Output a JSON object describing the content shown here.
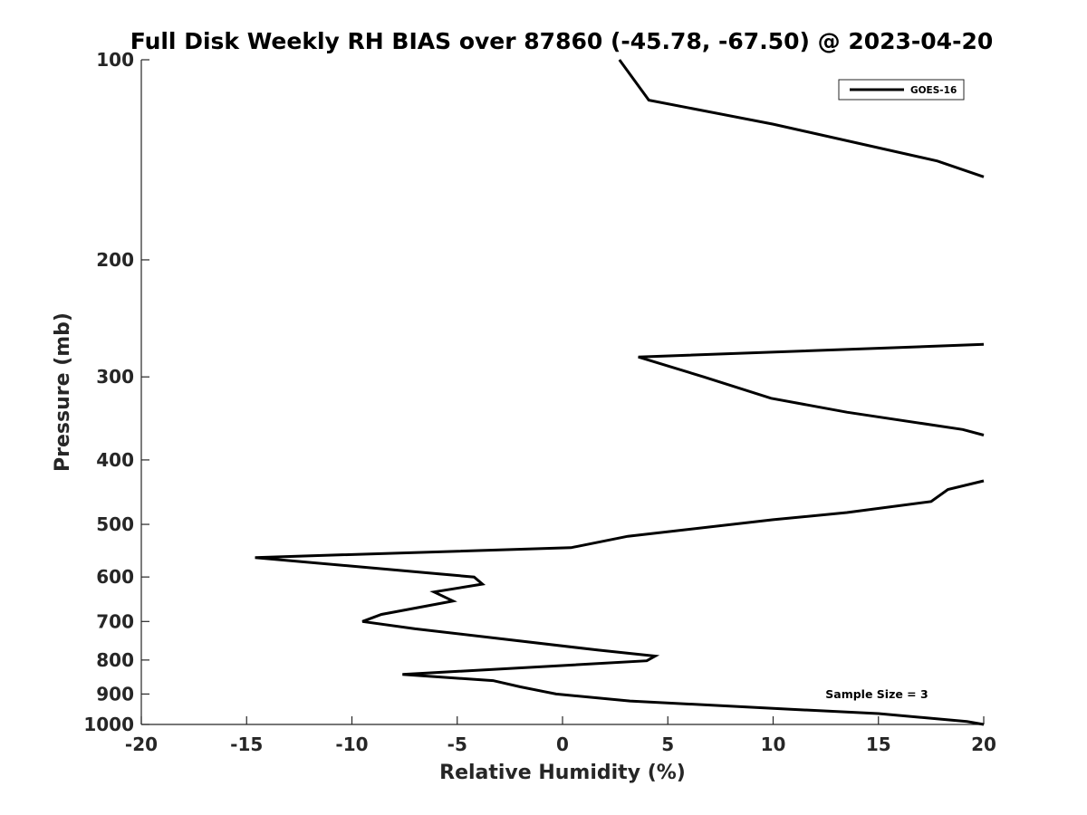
{
  "chart_data": {
    "type": "line",
    "title": "Full Disk Weekly RH BIAS over 87860 (-45.78, -67.50) @ 2023-04-20",
    "xlabel": "Relative Humidity (%)",
    "ylabel": "Pressure (mb)",
    "xlim": [
      -20,
      20
    ],
    "ylim": [
      100,
      1000
    ],
    "y_scale": "log",
    "y_reversed": true,
    "grid": false,
    "legend_position": "top-right",
    "x_ticks": [
      "-20",
      "-15",
      "-10",
      "-5",
      "0",
      "5",
      "10",
      "15",
      "20"
    ],
    "y_ticks": [
      "100",
      "200",
      "300",
      "400",
      "500",
      "600",
      "700",
      "800",
      "900",
      "1000"
    ],
    "annotation": "Sample Size = 3",
    "series": [
      {
        "name": "GOES-16",
        "color": "#000000",
        "segments": [
          [
            [
              2.7,
              100
            ],
            [
              4.1,
              115
            ],
            [
              10.0,
              125
            ],
            [
              17.8,
              142
            ],
            [
              20.0,
              150
            ]
          ],
          [
            [
              20.0,
              268
            ],
            [
              3.6,
              280
            ],
            [
              6.7,
              300
            ],
            [
              9.9,
              323
            ],
            [
              13.5,
              339
            ],
            [
              19.0,
              360
            ],
            [
              20.0,
              367
            ]
          ],
          [
            [
              20.0,
              430
            ],
            [
              18.3,
              443
            ],
            [
              17.5,
              462
            ],
            [
              13.5,
              480
            ],
            [
              10.0,
              492
            ],
            [
              3.1,
              521
            ],
            [
              0.4,
              542
            ],
            [
              -14.6,
              561
            ],
            [
              -4.2,
              600
            ],
            [
              -3.8,
              615
            ],
            [
              -6.1,
              632
            ],
            [
              -5.2,
              652
            ],
            [
              -8.6,
              683
            ],
            [
              -9.5,
              700
            ],
            [
              -7.0,
              718
            ],
            [
              1.7,
              773
            ],
            [
              4.4,
              789
            ],
            [
              4.0,
              802
            ],
            [
              -7.6,
              841
            ],
            [
              -3.3,
              859
            ],
            [
              -2.0,
              878
            ],
            [
              -0.3,
              900
            ],
            [
              3.2,
              922
            ],
            [
              10.0,
              946
            ],
            [
              15.0,
              963
            ],
            [
              19.2,
              990
            ],
            [
              20.0,
              1000
            ]
          ]
        ]
      }
    ]
  }
}
